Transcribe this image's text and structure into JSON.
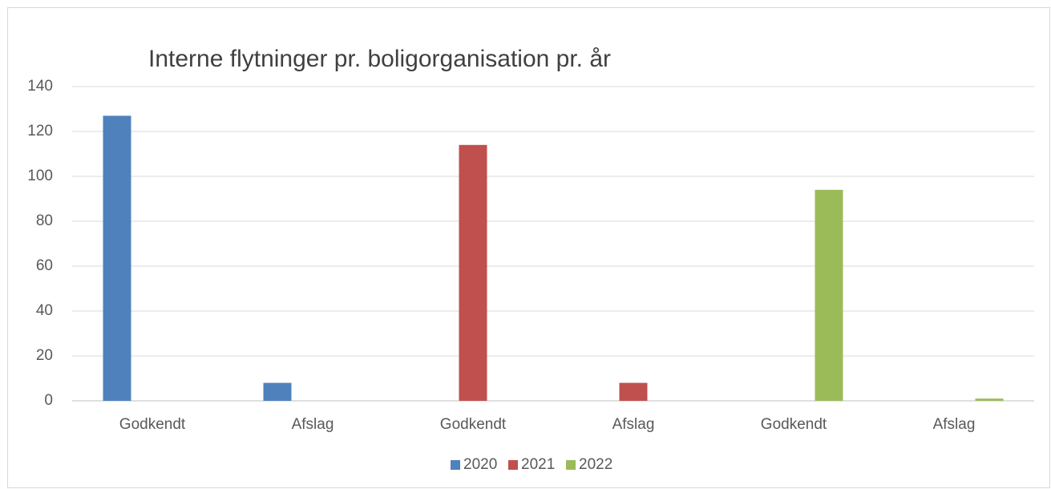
{
  "chart_data": {
    "type": "bar",
    "title": "Interne flytninger pr. boligorganisation pr. år",
    "categories": [
      "Godkendt",
      "Afslag",
      "Godkendt",
      "Afslag",
      "Godkendt",
      "Afslag"
    ],
    "series": [
      {
        "name": "2020",
        "color": "#4f81bd",
        "values": [
          127,
          8,
          null,
          null,
          null,
          null
        ]
      },
      {
        "name": "2021",
        "color": "#c0504d",
        "values": [
          null,
          null,
          114,
          8,
          null,
          null
        ]
      },
      {
        "name": "2022",
        "color": "#9bbb59",
        "values": [
          null,
          null,
          null,
          null,
          94,
          1
        ]
      }
    ],
    "ylim": [
      0,
      140
    ],
    "yticks": [
      0,
      20,
      40,
      60,
      80,
      100,
      120,
      140
    ],
    "grid": true,
    "legend": "bottom"
  }
}
